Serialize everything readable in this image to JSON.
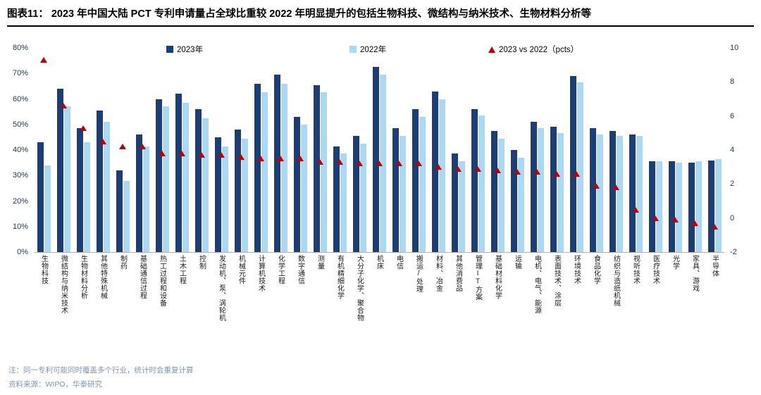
{
  "header": {
    "fig_label": "图表11：",
    "title": "2023 年中国大陆 PCT 专利申请量占全球比重较 2022 年明显提升的包括生物科技、微结构与纳米技术、生物材料分析等"
  },
  "legend": {
    "s2023": "2023年",
    "s2022": "2022年",
    "diff": "2023 vs 2022（pcts）"
  },
  "colors": {
    "bar2023": "#1A3E78",
    "bar2022": "#A9D9F5",
    "diff": "#C00000",
    "axis_text": "#17375E",
    "note_text": "#7E96B5"
  },
  "axes": {
    "left_ticks": [
      "80%",
      "70%",
      "60%",
      "50%",
      "40%",
      "30%",
      "20%",
      "10%",
      "0%"
    ],
    "right_ticks": [
      "10",
      "8",
      "6",
      "4",
      "2",
      "0",
      "-2"
    ]
  },
  "chart_data": {
    "type": "bar",
    "title": "2023 年中国大陆 PCT 专利申请量占全球比重",
    "left_ylim": [
      0,
      80
    ],
    "right_ylim": [
      -2,
      10
    ],
    "legend_position": "top",
    "grid": false,
    "categories": [
      "生物科技",
      "微结构与纳米技术",
      "生物材料分析",
      "其他特殊机械",
      "制药",
      "基础通信过程",
      "热工过程和设备",
      "土木工程",
      "控制",
      "发动机、泵、涡轮机",
      "机械元件",
      "计算机技术",
      "化学工程",
      "数字通信",
      "测量",
      "有机精细化学",
      "大分子化学、聚合物",
      "机床",
      "电信",
      "搬运/处理",
      "材料、冶金",
      "其他消费品",
      "管理IT方案",
      "基础材料化学",
      "运输",
      "电机、电气、能源",
      "表面技术、涂层",
      "环境技术",
      "食品化学",
      "纺织与造纸机械",
      "视听技术",
      "医疗技术",
      "光学",
      "家具、游戏",
      "半导体"
    ],
    "series": [
      {
        "name": "2023年",
        "axis": "left",
        "unit": "%",
        "marker": "bar",
        "values": [
          43,
          64,
          48.5,
          55.5,
          32,
          46,
          60,
          62,
          56,
          45,
          48,
          66,
          69.5,
          53,
          65.5,
          41.5,
          45.5,
          72.5,
          48.5,
          56,
          63,
          38.5,
          56,
          47.5,
          40,
          51,
          49,
          69,
          48.5,
          47.5,
          46,
          35.5,
          35.5,
          35,
          36
        ]
      },
      {
        "name": "2022年",
        "axis": "left",
        "unit": "%",
        "marker": "bar",
        "values": [
          34,
          57,
          43,
          51,
          28,
          41.5,
          57,
          58.5,
          52.5,
          41.5,
          44.5,
          62.5,
          66,
          50,
          62.5,
          38.5,
          42.5,
          69.5,
          45.5,
          53,
          60,
          35.5,
          53.5,
          44.5,
          37,
          48.5,
          46.5,
          66.5,
          46,
          45.5,
          45.5,
          35.5,
          35,
          35.5,
          36.5
        ]
      },
      {
        "name": "2023 vs 2022（pcts）",
        "axis": "right",
        "unit": "pcts",
        "marker": "triangle",
        "values": [
          9.3,
          6.6,
          5.3,
          4.5,
          4.2,
          4.2,
          3.8,
          3.8,
          3.7,
          3.7,
          3.6,
          3.5,
          3.5,
          3.5,
          3.3,
          3.3,
          3.2,
          3.2,
          3.2,
          3.2,
          3.0,
          2.9,
          2.9,
          2.8,
          2.7,
          2.7,
          2.6,
          2.6,
          1.9,
          1.8,
          0.5,
          0.0,
          -0.1,
          -0.3,
          -0.5
        ]
      }
    ]
  },
  "notes": {
    "note1": "注：同一专利可能同时覆盖多个行业，统计时会重复计算",
    "source": "资料来源：WIPO，华泰研究"
  }
}
